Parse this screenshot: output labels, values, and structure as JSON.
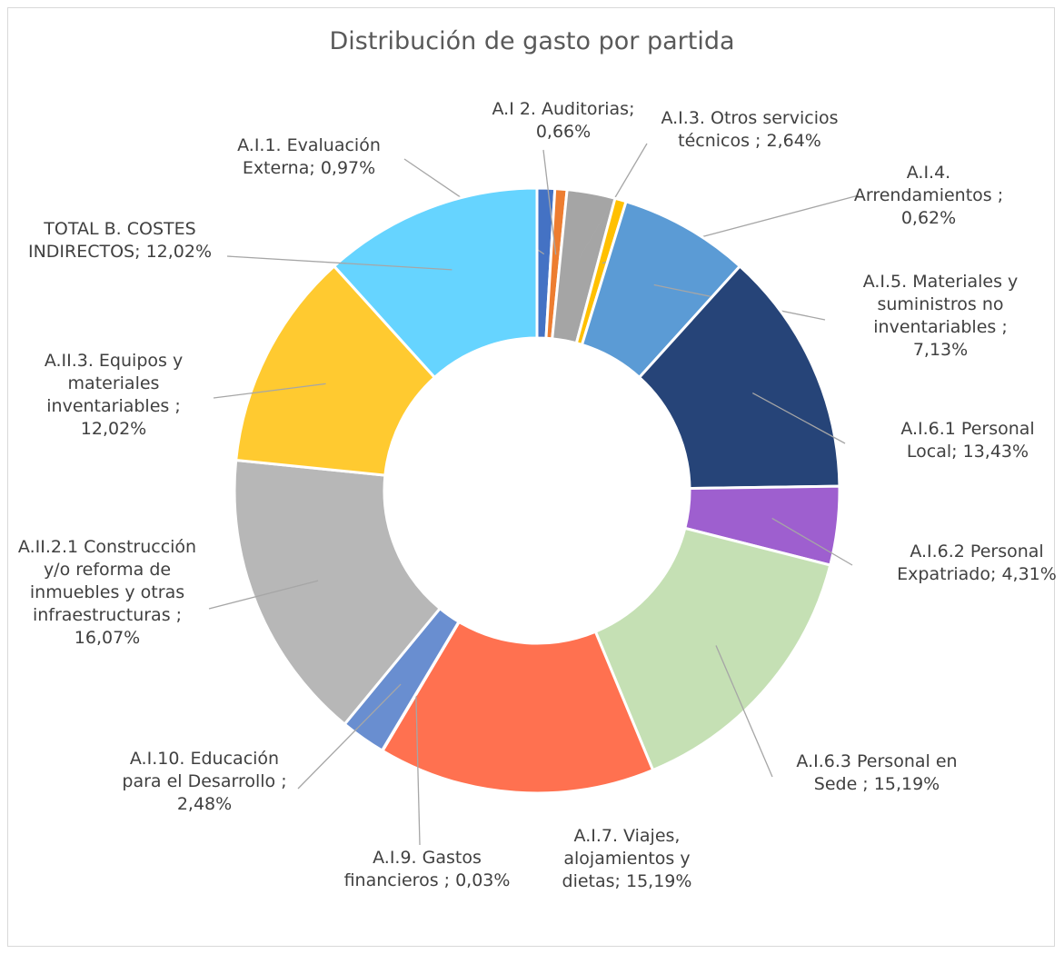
{
  "chart_data": {
    "type": "donut",
    "title": "Distribución de gasto por partida",
    "categories": [
      "A.I.1. Evaluación Externa;",
      "A.I 2. Auditorias;",
      "A.I.3. Otros servicios técnicos ;",
      "A.I.4. Arrendamientos ;",
      "A.I.5. Materiales y suministros no inventariables ;",
      "A.I.6.1 Personal Local;",
      "A.I.6.2 Personal Expatriado;",
      "A.I.6.3 Personal en Sede ;",
      "A.I.7. Viajes, alojamientos y dietas;",
      "A.I.9. Gastos financieros ;",
      "A.I.10. Educación para el Desarrollo ;",
      "A.II.2.1 Construcción y/o reforma de inmuebles y otras infraestructuras ;",
      "A.II.3. Equipos y materiales inventariables ;",
      "TOTAL B. COSTES INDIRECTOS;"
    ],
    "values": [
      0.97,
      0.66,
      2.64,
      0.62,
      7.13,
      13.43,
      4.31,
      15.19,
      15.19,
      0.03,
      2.48,
      16.07,
      12.02,
      12.02
    ],
    "value_labels": [
      "0,97%",
      "0,66%",
      "2,64%",
      "0,62%",
      "7,13%",
      "13,43%",
      "4,31%",
      "15,19%",
      "15,19%",
      "0,03%",
      "2,48%",
      "16,07%",
      "12,02%",
      "12,02%"
    ],
    "colors": [
      "#4472c4",
      "#ed7d31",
      "#a5a5a5",
      "#ffc000",
      "#5b9bd5",
      "#264478",
      "#9e5fcf",
      "#c5e0b4",
      "#ff7150",
      "#7f6000",
      "#698ed0",
      "#b7b7b7",
      "#ffca30",
      "#66d4ff"
    ]
  }
}
